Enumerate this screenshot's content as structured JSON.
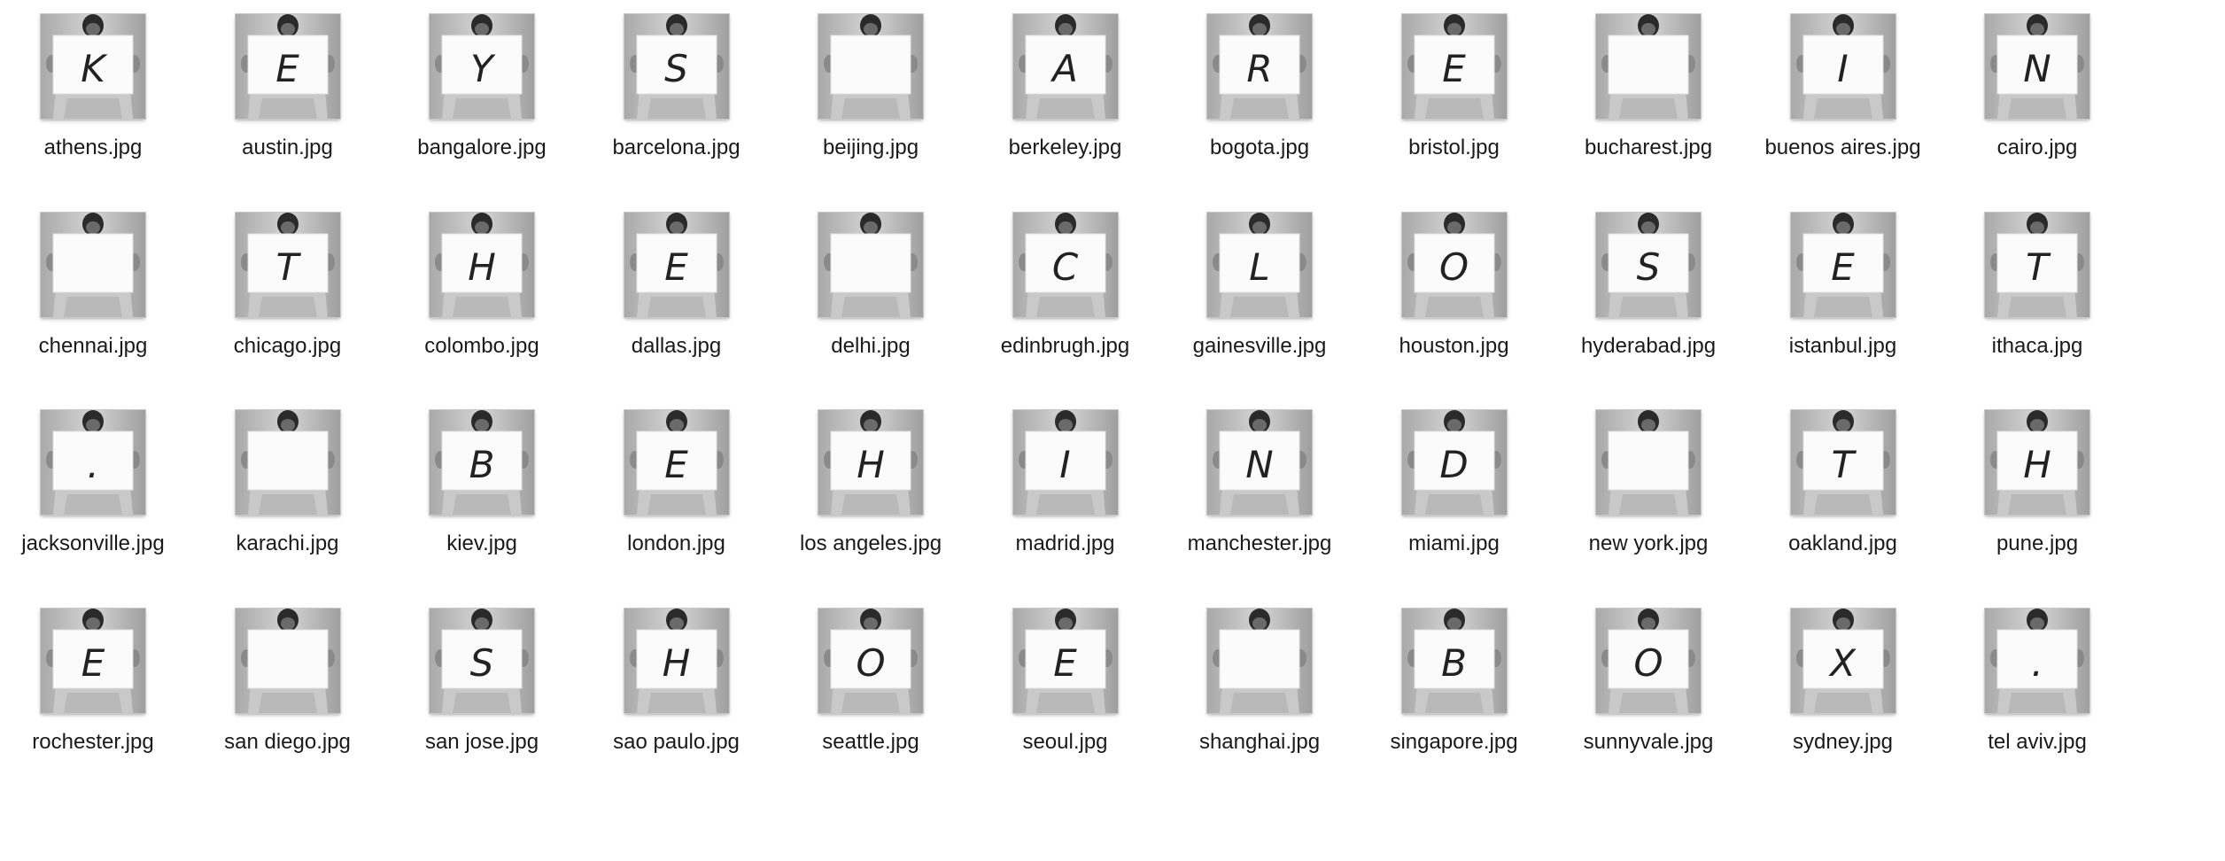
{
  "files": [
    {
      "name": "athens.jpg",
      "letter": "K"
    },
    {
      "name": "austin.jpg",
      "letter": "E"
    },
    {
      "name": "bangalore.jpg",
      "letter": "Y"
    },
    {
      "name": "barcelona.jpg",
      "letter": "S"
    },
    {
      "name": "beijing.jpg",
      "letter": ""
    },
    {
      "name": "berkeley.jpg",
      "letter": "A"
    },
    {
      "name": "bogota.jpg",
      "letter": "R"
    },
    {
      "name": "bristol.jpg",
      "letter": "E"
    },
    {
      "name": "bucharest.jpg",
      "letter": ""
    },
    {
      "name": "buenos aires.jpg",
      "letter": "I"
    },
    {
      "name": "cairo.jpg",
      "letter": "N"
    },
    {
      "name": "chennai.jpg",
      "letter": ""
    },
    {
      "name": "chicago.jpg",
      "letter": "T"
    },
    {
      "name": "colombo.jpg",
      "letter": "H"
    },
    {
      "name": "dallas.jpg",
      "letter": "E"
    },
    {
      "name": "delhi.jpg",
      "letter": ""
    },
    {
      "name": "edinbrugh.jpg",
      "letter": "C"
    },
    {
      "name": "gainesville.jpg",
      "letter": "L"
    },
    {
      "name": "houston.jpg",
      "letter": "O"
    },
    {
      "name": "hyderabad.jpg",
      "letter": "S"
    },
    {
      "name": "istanbul.jpg",
      "letter": "E"
    },
    {
      "name": "ithaca.jpg",
      "letter": "T"
    },
    {
      "name": "jacksonville.jpg",
      "letter": "."
    },
    {
      "name": "karachi.jpg",
      "letter": ""
    },
    {
      "name": "kiev.jpg",
      "letter": "B"
    },
    {
      "name": "london.jpg",
      "letter": "E"
    },
    {
      "name": "los angeles.jpg",
      "letter": "H"
    },
    {
      "name": "madrid.jpg",
      "letter": "I"
    },
    {
      "name": "manchester.jpg",
      "letter": "N"
    },
    {
      "name": "miami.jpg",
      "letter": "D"
    },
    {
      "name": "new york.jpg",
      "letter": ""
    },
    {
      "name": "oakland.jpg",
      "letter": "T"
    },
    {
      "name": "pune.jpg",
      "letter": "H"
    },
    {
      "name": "rochester.jpg",
      "letter": "E"
    },
    {
      "name": "san diego.jpg",
      "letter": ""
    },
    {
      "name": "san jose.jpg",
      "letter": "S"
    },
    {
      "name": "sao paulo.jpg",
      "letter": "H"
    },
    {
      "name": "seattle.jpg",
      "letter": "O"
    },
    {
      "name": "seoul.jpg",
      "letter": "E"
    },
    {
      "name": "shanghai.jpg",
      "letter": ""
    },
    {
      "name": "singapore.jpg",
      "letter": "B"
    },
    {
      "name": "sunnyvale.jpg",
      "letter": "O"
    },
    {
      "name": "sydney.jpg",
      "letter": "X"
    },
    {
      "name": "tel aviv.jpg",
      "letter": "."
    }
  ],
  "icon": "photo-thumbnail-icon"
}
